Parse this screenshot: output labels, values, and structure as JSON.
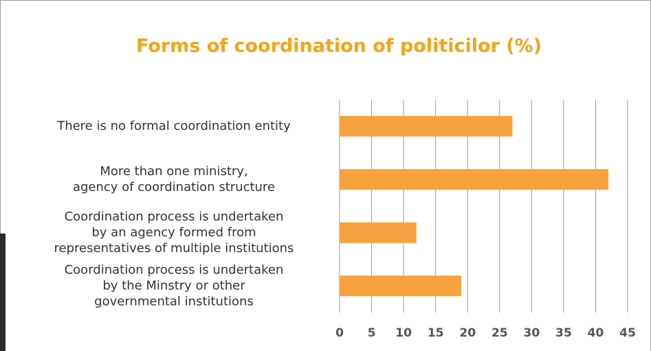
{
  "chart_data": {
    "type": "bar",
    "orientation": "horizontal",
    "title": "Forms of coordination of politicilor (%)",
    "categories": [
      "There is no formal coordination entity",
      "More than one ministry,\nagency of coordination structure",
      "Coordination process is undertaken\nby an agency formed from\nrepresentatives of multiple institutions",
      "Coordination process is undertaken\nby the Minstry or other\ngovernmental institutions"
    ],
    "values": [
      27,
      42,
      12,
      19
    ],
    "color": "#f7a13e",
    "xlim": [
      0,
      45
    ],
    "xticks": [
      0,
      5,
      10,
      15,
      20,
      25,
      30,
      35,
      40,
      45
    ],
    "grid": true
  }
}
